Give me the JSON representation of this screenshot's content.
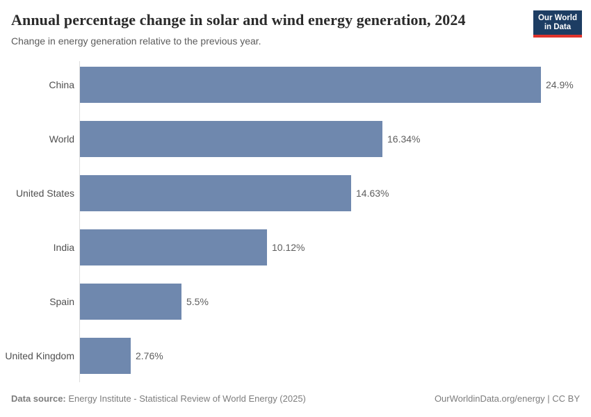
{
  "header": {
    "title": "Annual percentage change in solar and wind energy generation, 2024",
    "subtitle": "Change in energy generation relative to the previous year.",
    "logo_line1": "Our World",
    "logo_line2": "in Data"
  },
  "chart_data": {
    "type": "bar",
    "orientation": "horizontal",
    "title": "Annual percentage change in solar and wind energy generation, 2024",
    "subtitle": "Change in energy generation relative to the previous year.",
    "categories": [
      "China",
      "World",
      "United States",
      "India",
      "Spain",
      "United Kingdom"
    ],
    "values": [
      24.9,
      16.34,
      14.63,
      10.12,
      5.5,
      2.76
    ],
    "value_labels": [
      "24.9%",
      "16.34%",
      "14.63%",
      "10.12%",
      "5.5%",
      "2.76%"
    ],
    "unit": "%",
    "xlabel": "",
    "ylabel": "",
    "xlim": [
      0,
      24.9
    ],
    "grid": false,
    "legend_position": "none",
    "bar_color": "#6f88ae",
    "axis_line_color": "#dddddd"
  },
  "footer": {
    "datasource_label": "Data source:",
    "datasource_text": " Energy Institute - Statistical Review of World Energy (2025)",
    "right_text": "OurWorldinData.org/energy | CC BY"
  }
}
